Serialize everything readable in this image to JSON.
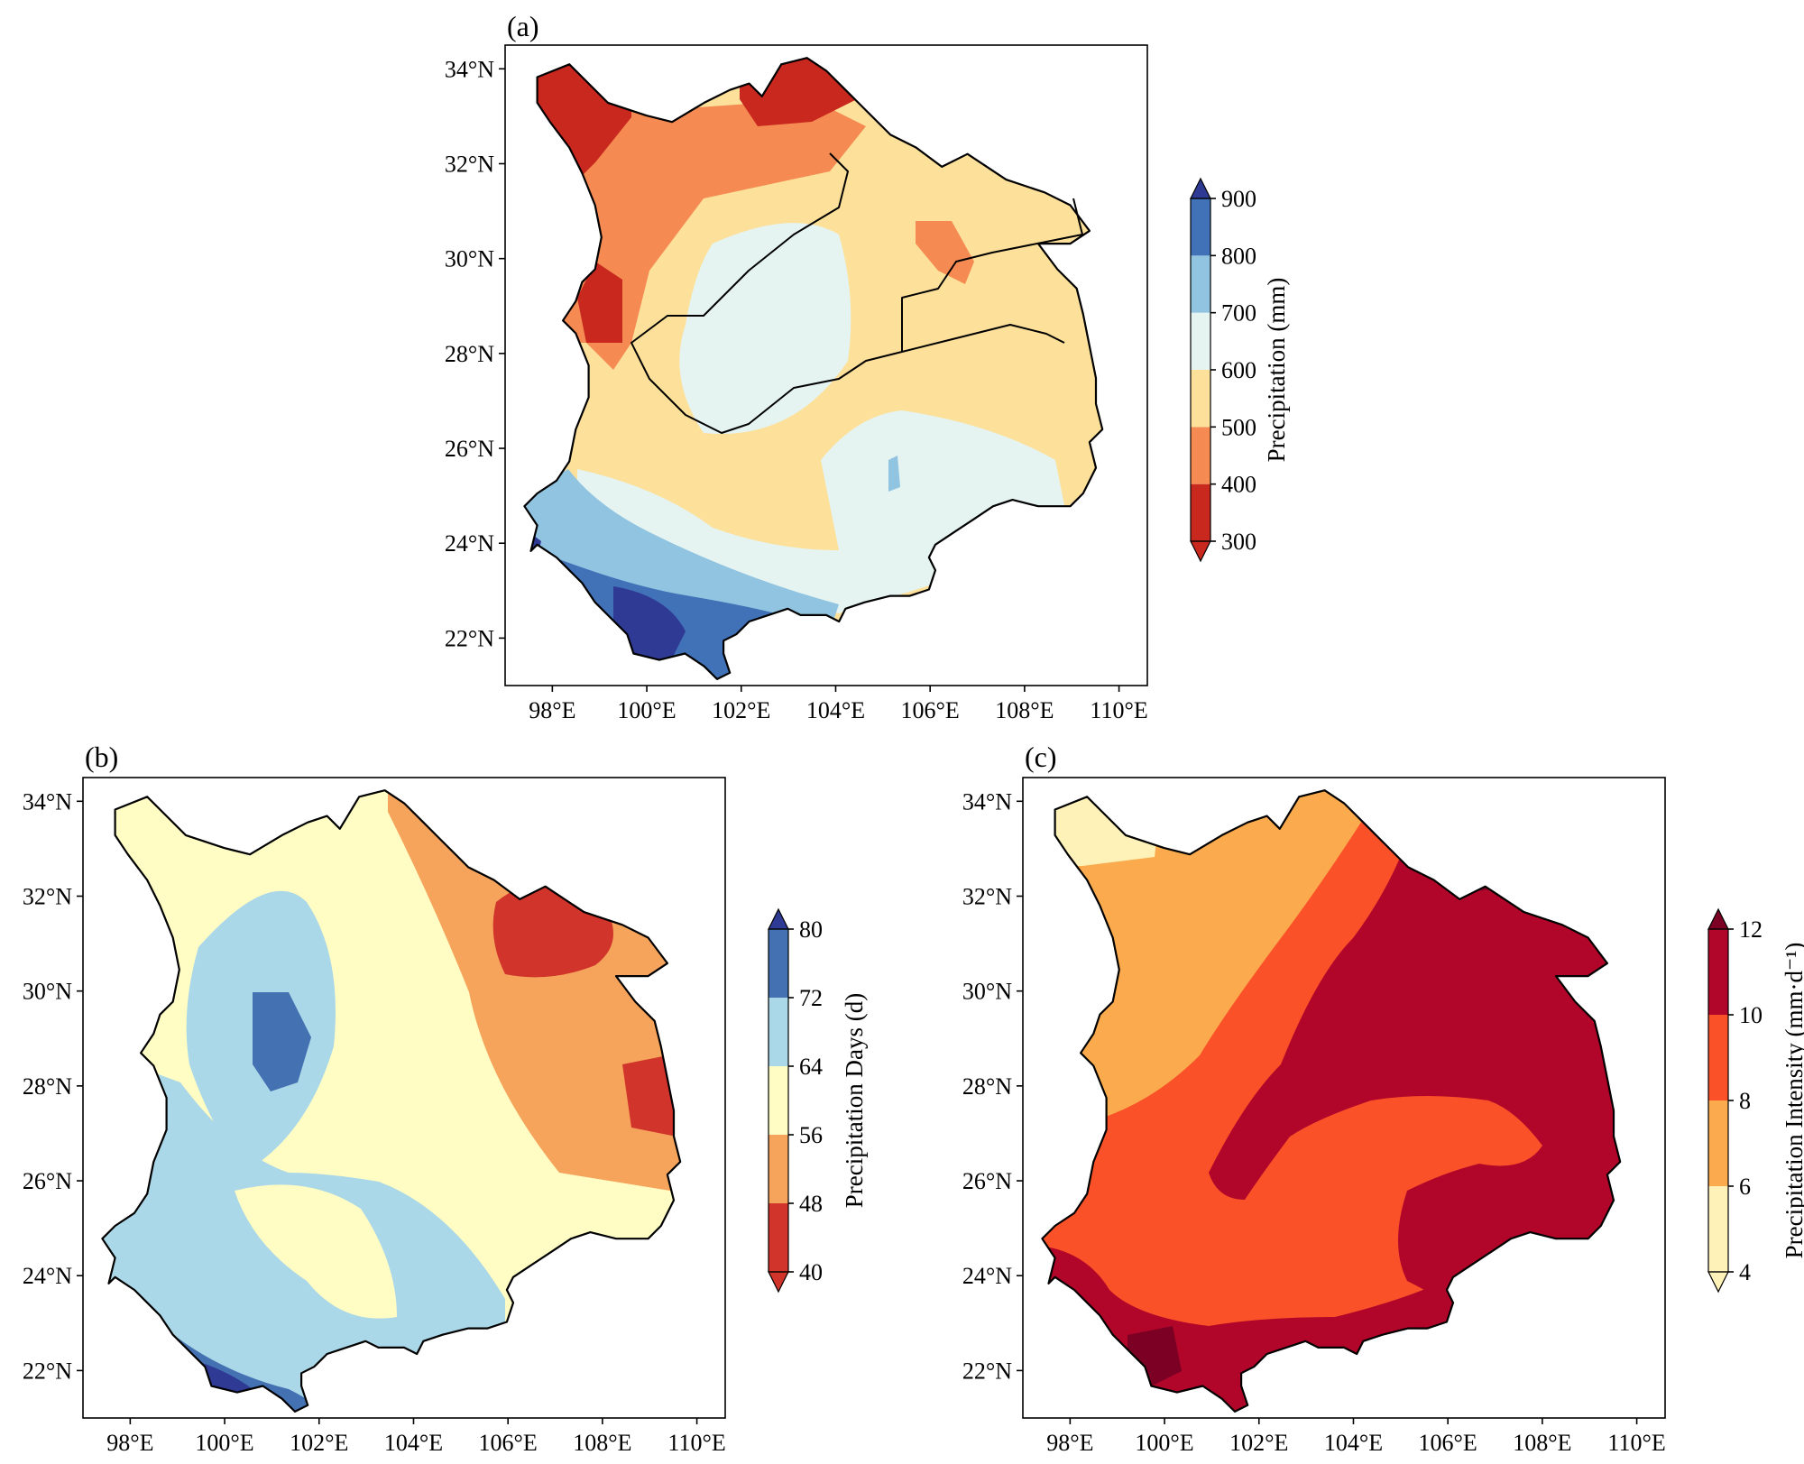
{
  "figure": {
    "panels": [
      {
        "id": "a",
        "label": "(a)",
        "colorbar": {
          "label": "Precipitation (mm)",
          "levels": [
            "300",
            "400",
            "500",
            "600",
            "700",
            "800",
            "900"
          ],
          "colors": [
            "#c8281e",
            "#f58b52",
            "#fde09a",
            "#e5f4f1",
            "#91c4e1",
            "#4171b6",
            "#2e3a94"
          ],
          "extend": "both"
        }
      },
      {
        "id": "b",
        "label": "(b)",
        "colorbar": {
          "label": "Precipitation Days (d)",
          "levels": [
            "40",
            "48",
            "56",
            "64",
            "72",
            "80"
          ],
          "colors": [
            "#d0342a",
            "#f6a45c",
            "#fffdc4",
            "#abd8e8",
            "#4371b2",
            "#2e3a94"
          ],
          "extend": "both"
        }
      },
      {
        "id": "c",
        "label": "(c)",
        "colorbar": {
          "label": "Precipitation Intensity (mm·d⁻¹)",
          "levels": [
            "4",
            "6",
            "8",
            "10",
            "12"
          ],
          "colors": [
            "#fff2b8",
            "#fbab4d",
            "#fb5128",
            "#b1062a",
            "#7c0024"
          ],
          "extend": "both"
        }
      }
    ],
    "axes": {
      "lat_labels": [
        "22°N",
        "24°N",
        "26°N",
        "28°N",
        "30°N",
        "32°N",
        "34°N"
      ],
      "lon_labels": [
        "98°E",
        "100°E",
        "102°E",
        "104°E",
        "106°E",
        "108°E",
        "110°E"
      ],
      "lat_values": [
        22,
        24,
        26,
        28,
        30,
        32,
        34
      ],
      "lon_values": [
        98,
        100,
        102,
        104,
        106,
        108,
        110
      ],
      "lat_range": [
        21.0,
        34.5
      ],
      "lon_range": [
        97.0,
        110.6
      ]
    }
  }
}
